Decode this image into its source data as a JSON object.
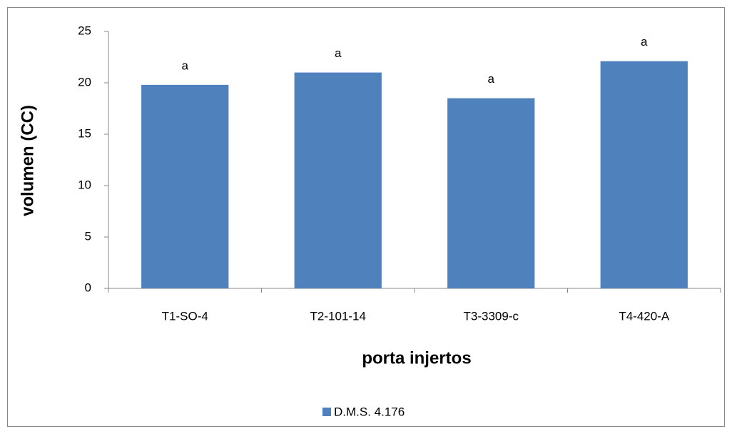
{
  "chart_data": {
    "type": "bar",
    "categories": [
      "T1-SO-4",
      "T2-101-14",
      "T3-3309-c",
      "T4-420-A"
    ],
    "series": [
      {
        "name": "D.M.S. 4.176",
        "color": "#4f81bd",
        "values": [
          19.8,
          21.0,
          18.5,
          22.1
        ]
      }
    ],
    "annotations": [
      "a",
      "a",
      "a",
      "a"
    ],
    "xlabel": "porta injertos",
    "ylabel": "volumen (CC)",
    "ylim": [
      0,
      25
    ],
    "yticks": [
      0,
      5,
      10,
      15,
      20,
      25
    ],
    "grid": false,
    "legend": "bottom"
  }
}
